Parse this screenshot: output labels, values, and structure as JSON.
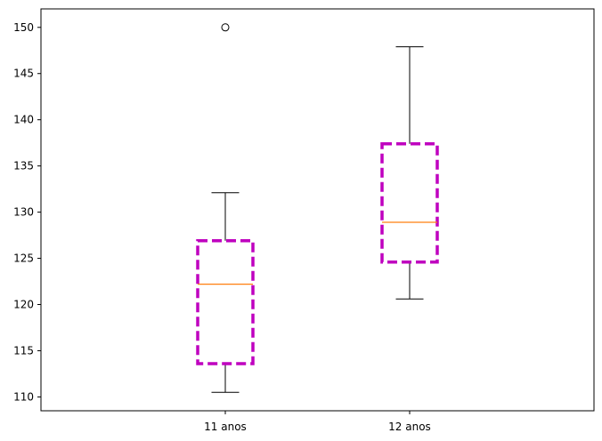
{
  "chart_data": {
    "type": "boxplot",
    "categories": [
      "11 anos",
      "12 anos"
    ],
    "boxes": [
      {
        "category": "11 anos",
        "whisker_low": 110.5,
        "q1": 113.6,
        "median": 122.2,
        "q3": 126.9,
        "whisker_high": 132.1,
        "outliers": [
          150
        ]
      },
      {
        "category": "12 anos",
        "whisker_low": 120.6,
        "q1": 124.6,
        "median": 128.9,
        "q3": 137.4,
        "whisker_high": 147.9,
        "outliers": []
      }
    ],
    "yticks": [
      110,
      115,
      120,
      125,
      130,
      135,
      140,
      145,
      150
    ],
    "ylim": [
      108.5,
      152
    ],
    "grid": false,
    "box_style": {
      "color": "#bf00bf",
      "linestyle": "dashed"
    },
    "median_color": "#ff7f0e",
    "whisker_color": "#000000"
  }
}
